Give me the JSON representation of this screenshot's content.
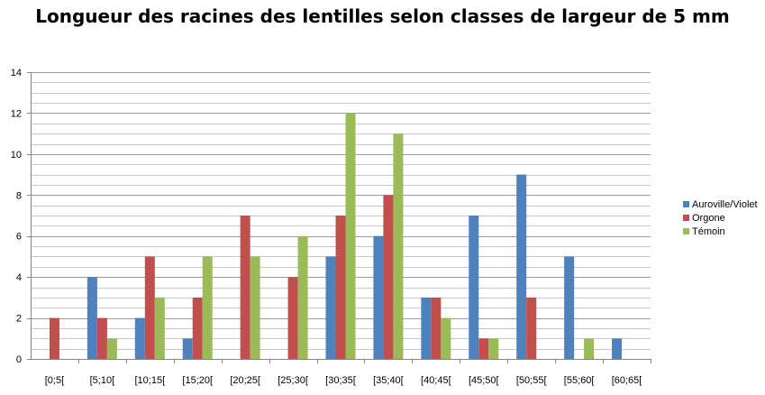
{
  "chart_data": {
    "type": "bar",
    "title": "Longueur des racines des lentilles selon classes de largeur de 5 mm",
    "xlabel": "",
    "ylabel": "",
    "categories": [
      "[0;5[",
      "[5;10[",
      "[10;15[",
      "[15;20[",
      "[20;25[",
      "[25;30[",
      "[30;35[",
      "[35;40[",
      "[40;45[",
      "[45;50[",
      "[50;55[",
      "[55;60[",
      "[60;65["
    ],
    "series": [
      {
        "name": "Auroville/Violet",
        "color": "#4F81BD",
        "values": [
          0,
          4,
          2,
          1,
          0,
          0,
          5,
          6,
          3,
          7,
          9,
          5,
          1
        ]
      },
      {
        "name": "Orgone",
        "color": "#C0504D",
        "values": [
          2,
          2,
          5,
          3,
          7,
          4,
          7,
          8,
          3,
          1,
          3,
          0,
          0
        ]
      },
      {
        "name": "Témoin",
        "color": "#9BBB59",
        "values": [
          0,
          1,
          3,
          5,
          5,
          6,
          12,
          11,
          2,
          1,
          0,
          1,
          0
        ]
      }
    ],
    "ylim": [
      0,
      14
    ],
    "yticks": [
      "0",
      "2",
      "4",
      "6",
      "8",
      "10",
      "12",
      "14"
    ],
    "ytick_values": [
      0,
      2,
      4,
      6,
      8,
      10,
      12,
      14
    ],
    "minor_grid_step": 0.5,
    "grid": true,
    "legend_position": "right"
  }
}
